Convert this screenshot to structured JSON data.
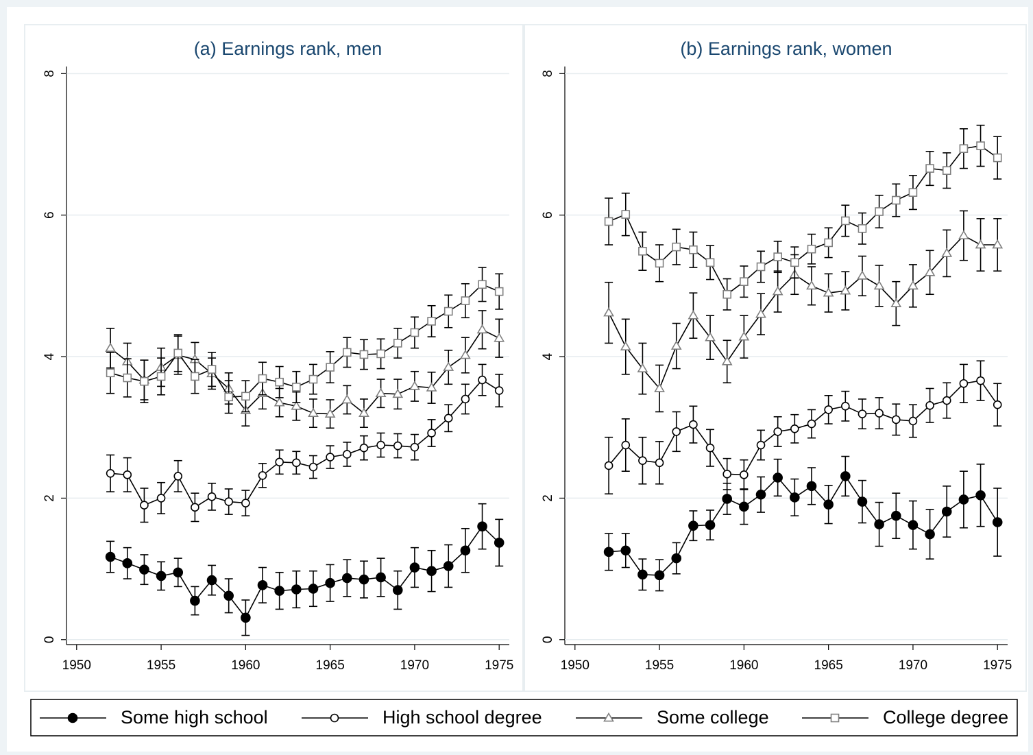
{
  "chart_data": [
    {
      "type": "line",
      "title": "(a) Earnings rank, men",
      "x": [
        1952,
        1953,
        1954,
        1955,
        1956,
        1957,
        1958,
        1959,
        1960,
        1961,
        1962,
        1963,
        1964,
        1965,
        1966,
        1967,
        1968,
        1969,
        1970,
        1971,
        1972,
        1973,
        1974,
        1975
      ],
      "xlim": [
        1949.4,
        1975.6
      ],
      "xticks": [
        1950,
        1955,
        1960,
        1965,
        1970,
        1975
      ],
      "ylim": [
        -0.07,
        8.1
      ],
      "yticks": [
        0,
        2,
        4,
        6,
        8
      ],
      "grid": true,
      "legend": "bottom",
      "series": [
        {
          "name": "Some high school",
          "color": "#000000",
          "marker": "filled-circle",
          "values": [
            1.17,
            1.08,
            0.99,
            0.9,
            0.95,
            0.55,
            0.84,
            0.62,
            0.31,
            0.77,
            0.69,
            0.71,
            0.72,
            0.8,
            0.87,
            0.85,
            0.88,
            0.7,
            1.02,
            0.97,
            1.04,
            1.26,
            1.6,
            1.37
          ],
          "errors": [
            0.22,
            0.22,
            0.21,
            0.2,
            0.2,
            0.2,
            0.21,
            0.24,
            0.25,
            0.25,
            0.26,
            0.26,
            0.25,
            0.26,
            0.26,
            0.26,
            0.27,
            0.27,
            0.28,
            0.29,
            0.3,
            0.31,
            0.32,
            0.33
          ]
        },
        {
          "name": "High school degree",
          "color": "#000000",
          "marker": "hollow-circle",
          "values": [
            2.35,
            2.33,
            1.9,
            2.0,
            2.31,
            1.87,
            2.02,
            1.95,
            1.93,
            2.32,
            2.51,
            2.5,
            2.44,
            2.58,
            2.62,
            2.71,
            2.75,
            2.74,
            2.72,
            2.92,
            3.13,
            3.4,
            3.67,
            3.52
          ],
          "errors": [
            0.26,
            0.24,
            0.24,
            0.22,
            0.22,
            0.2,
            0.19,
            0.18,
            0.18,
            0.17,
            0.17,
            0.16,
            0.16,
            0.16,
            0.17,
            0.17,
            0.17,
            0.17,
            0.18,
            0.19,
            0.19,
            0.21,
            0.22,
            0.23
          ]
        },
        {
          "name": "Some college",
          "color": "#7f7f7f",
          "marker": "triangle",
          "values": [
            4.12,
            3.93,
            3.67,
            3.85,
            4.02,
            3.96,
            3.76,
            3.55,
            3.24,
            3.48,
            3.35,
            3.3,
            3.2,
            3.19,
            3.39,
            3.2,
            3.48,
            3.47,
            3.58,
            3.56,
            3.85,
            4.02,
            4.38,
            4.26
          ],
          "errors": [
            0.28,
            0.26,
            0.28,
            0.27,
            0.27,
            0.24,
            0.22,
            0.22,
            0.22,
            0.22,
            0.2,
            0.2,
            0.2,
            0.2,
            0.2,
            0.2,
            0.2,
            0.21,
            0.21,
            0.22,
            0.24,
            0.25,
            0.27,
            0.27
          ]
        },
        {
          "name": "College degree",
          "color": "#7f7f7f",
          "marker": "square",
          "values": [
            3.77,
            3.7,
            3.65,
            3.72,
            4.05,
            3.72,
            3.82,
            3.43,
            3.44,
            3.69,
            3.64,
            3.57,
            3.68,
            3.85,
            4.06,
            4.03,
            4.04,
            4.19,
            4.34,
            4.5,
            4.64,
            4.79,
            5.02,
            4.92
          ],
          "errors": [
            0.29,
            0.27,
            0.3,
            0.26,
            0.26,
            0.24,
            0.24,
            0.23,
            0.22,
            0.23,
            0.22,
            0.22,
            0.21,
            0.22,
            0.21,
            0.21,
            0.21,
            0.21,
            0.22,
            0.22,
            0.23,
            0.24,
            0.24,
            0.25
          ]
        }
      ]
    },
    {
      "type": "line",
      "title": "(b) Earnings rank, women",
      "x": [
        1952,
        1953,
        1954,
        1955,
        1956,
        1957,
        1958,
        1959,
        1960,
        1961,
        1962,
        1963,
        1964,
        1965,
        1966,
        1967,
        1968,
        1969,
        1970,
        1971,
        1972,
        1973,
        1974,
        1975
      ],
      "xlim": [
        1949.4,
        1975.6
      ],
      "xticks": [
        1950,
        1955,
        1960,
        1965,
        1970,
        1975
      ],
      "ylim": [
        -0.07,
        8.1
      ],
      "yticks": [
        0,
        2,
        4,
        6,
        8
      ],
      "grid": true,
      "series": [
        {
          "color": "#000000",
          "marker": "filled-circle",
          "values": [
            1.24,
            1.26,
            0.92,
            0.91,
            1.15,
            1.61,
            1.62,
            1.99,
            1.88,
            2.05,
            2.29,
            2.01,
            2.17,
            1.91,
            2.31,
            1.95,
            1.63,
            1.75,
            1.62,
            1.49,
            1.81,
            1.98,
            2.04,
            1.66
          ],
          "errors": [
            0.26,
            0.24,
            0.22,
            0.22,
            0.22,
            0.21,
            0.21,
            0.22,
            0.25,
            0.25,
            0.26,
            0.26,
            0.26,
            0.27,
            0.28,
            0.3,
            0.31,
            0.32,
            0.34,
            0.35,
            0.36,
            0.4,
            0.44,
            0.48
          ]
        },
        {
          "color": "#000000",
          "marker": "hollow-circle",
          "values": [
            2.46,
            2.75,
            2.53,
            2.5,
            2.94,
            3.04,
            2.71,
            2.34,
            2.33,
            2.75,
            2.94,
            2.98,
            3.05,
            3.25,
            3.3,
            3.19,
            3.2,
            3.11,
            3.09,
            3.31,
            3.38,
            3.62,
            3.66,
            3.32
          ],
          "errors": [
            0.4,
            0.37,
            0.33,
            0.3,
            0.28,
            0.26,
            0.26,
            0.22,
            0.21,
            0.21,
            0.21,
            0.2,
            0.2,
            0.2,
            0.21,
            0.21,
            0.22,
            0.22,
            0.23,
            0.24,
            0.25,
            0.27,
            0.28,
            0.3
          ]
        },
        {
          "color": "#7f7f7f",
          "marker": "triangle",
          "values": [
            4.62,
            4.14,
            3.83,
            3.55,
            4.15,
            4.58,
            4.27,
            3.93,
            4.28,
            4.6,
            4.92,
            5.16,
            5.0,
            4.9,
            4.93,
            5.14,
            5.0,
            4.75,
            5.0,
            5.19,
            5.46,
            5.71,
            5.58,
            5.58
          ],
          "errors": [
            0.43,
            0.39,
            0.36,
            0.33,
            0.32,
            0.32,
            0.31,
            0.3,
            0.3,
            0.29,
            0.29,
            0.28,
            0.27,
            0.27,
            0.27,
            0.28,
            0.29,
            0.31,
            0.3,
            0.31,
            0.33,
            0.35,
            0.37,
            0.37
          ]
        },
        {
          "color": "#7f7f7f",
          "marker": "square",
          "values": [
            5.91,
            6.01,
            5.49,
            5.32,
            5.55,
            5.51,
            5.33,
            4.88,
            5.06,
            5.27,
            5.41,
            5.33,
            5.52,
            5.61,
            5.92,
            5.81,
            6.05,
            6.21,
            6.32,
            6.66,
            6.63,
            6.94,
            6.98,
            6.81
          ],
          "errors": [
            0.33,
            0.3,
            0.27,
            0.26,
            0.25,
            0.25,
            0.24,
            0.22,
            0.22,
            0.22,
            0.22,
            0.22,
            0.21,
            0.21,
            0.22,
            0.22,
            0.23,
            0.23,
            0.24,
            0.24,
            0.25,
            0.28,
            0.29,
            0.3
          ]
        }
      ]
    }
  ]
}
